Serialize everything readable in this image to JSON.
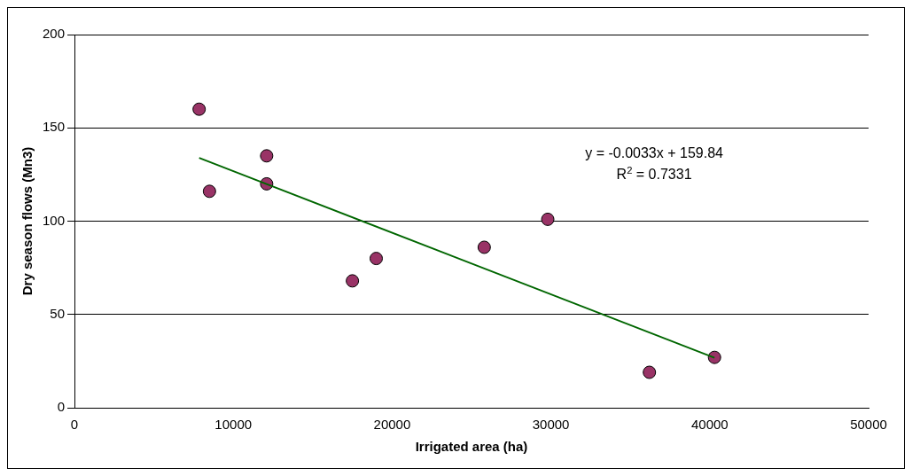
{
  "chart_data": {
    "type": "scatter",
    "xlabel": "Irrigated area (ha)",
    "ylabel": "Dry season flows (Mn3)",
    "series": [
      {
        "color": "#993366",
        "marker": "circle",
        "x": [
          7850,
          8500,
          12100,
          12100,
          17500,
          19000,
          25800,
          29800,
          36200,
          40300
        ],
        "values": [
          160,
          116,
          135,
          120,
          68,
          80,
          86,
          101,
          19,
          27
        ]
      },
      {
        "type": "line",
        "color": "#006600",
        "marker": "none",
        "x": [
          7850,
          40300
        ],
        "values": [
          133.9,
          26.8
        ]
      }
    ],
    "xlim": [
      0,
      50000
    ],
    "xticks": [
      0,
      10000,
      20000,
      30000,
      40000,
      50000
    ],
    "ylim": [
      0,
      200
    ],
    "yticks": [
      0,
      50,
      100,
      150,
      200
    ],
    "grid": "y",
    "legend": false,
    "annotations": [
      "y = -0.0033x + 159.84",
      "R$^{2}$ = 0.7331"
    ]
  }
}
